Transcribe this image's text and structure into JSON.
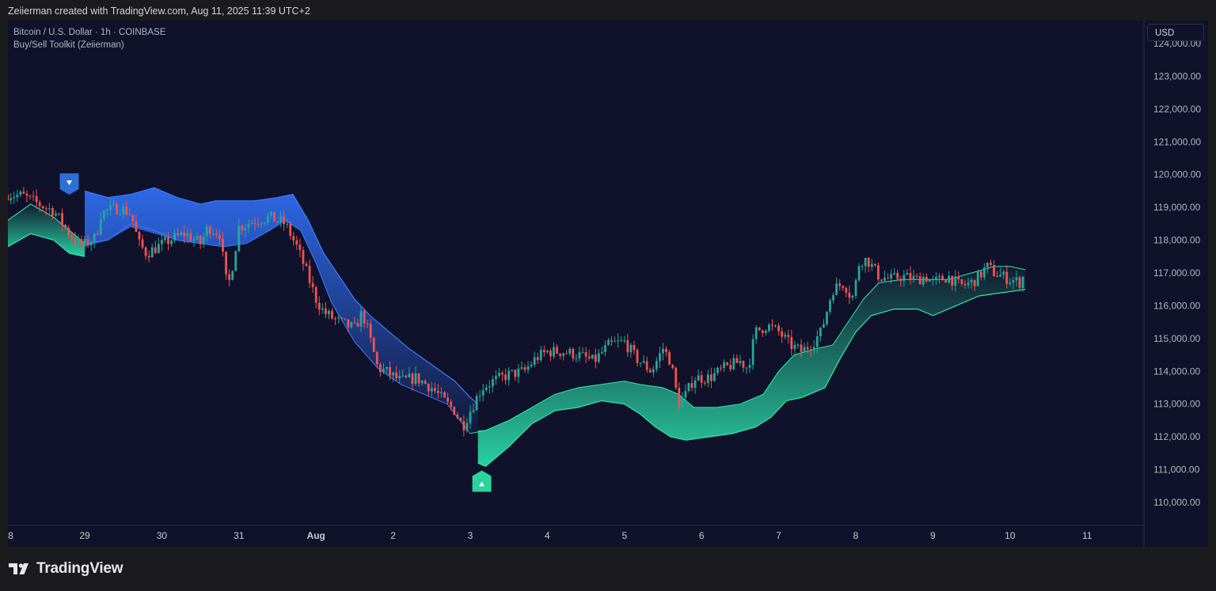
{
  "header": {
    "attribution": "Zeiierman created with TradingView.com, Aug 11, 2025 11:39 UTC+2"
  },
  "legend": {
    "symbol_line": "Bitcoin / U.S. Dollar · 1h · COINBASE",
    "indicator_line": "Buy/Sell Toolkit (Zeiierman)"
  },
  "price_axis": {
    "currency": "USD",
    "tick_labels": [
      "124,000.00",
      "123,000.00",
      "122,000.00",
      "121,000.00",
      "120,000.00",
      "119,000.00",
      "118,000.00",
      "117,000.00",
      "116,000.00",
      "115,000.00",
      "114,000.00",
      "113,000.00",
      "112,000.00",
      "111,000.00",
      "110,000.00"
    ]
  },
  "time_axis": {
    "tick_labels": [
      "8",
      "29",
      "30",
      "31",
      "Aug",
      "2",
      "3",
      "4",
      "5",
      "6",
      "7",
      "8",
      "9",
      "10",
      "11"
    ]
  },
  "footer": {
    "brand": "TradingView",
    "logo_icon": "tradingview-logo-icon"
  },
  "colors": {
    "background": "#10112a",
    "up_candle": "#26a69a",
    "down_candle": "#ef5350",
    "bearish_band": "#2962ff",
    "bullish_band": "#1de9b6",
    "sell_signal": "#2d6fd6",
    "buy_signal": "#29d39a"
  },
  "chart_data": {
    "type": "candlestick",
    "symbol": "Bitcoin / U.S. Dollar",
    "timeframe": "1h",
    "exchange": "COINBASE",
    "indicator": "Buy/Sell Toolkit (Zeiierman)",
    "y_axis": {
      "currency": "USD",
      "ylim": [
        109300,
        124700
      ],
      "ticks": [
        110000,
        111000,
        112000,
        113000,
        114000,
        115000,
        116000,
        117000,
        118000,
        119000,
        120000,
        121000,
        122000,
        123000,
        124000
      ]
    },
    "x_axis": {
      "ticks": [
        "8",
        "29",
        "30",
        "31",
        "Aug",
        "2",
        "3",
        "4",
        "5",
        "6",
        "7",
        "8",
        "9",
        "10",
        "11"
      ],
      "tick_positions_days": [
        -0.96,
        0,
        1,
        2,
        3,
        4,
        5,
        6,
        7,
        8,
        9,
        10,
        11,
        12,
        13
      ]
    },
    "close_path": [
      [
        -1.0,
        119400
      ],
      [
        -0.8,
        119350
      ],
      [
        -0.6,
        119100
      ],
      [
        -0.4,
        118900
      ],
      [
        -0.2,
        118200
      ],
      [
        -0.05,
        117800
      ],
      [
        0.15,
        118100
      ],
      [
        0.2,
        118800
      ],
      [
        0.3,
        118900
      ],
      [
        0.45,
        119000
      ],
      [
        0.6,
        118800
      ],
      [
        0.7,
        117900
      ],
      [
        0.8,
        117600
      ],
      [
        0.95,
        117800
      ],
      [
        1.1,
        118000
      ],
      [
        1.3,
        118200
      ],
      [
        1.5,
        117900
      ],
      [
        1.6,
        118400
      ],
      [
        1.75,
        118200
      ],
      [
        1.85,
        116500
      ],
      [
        1.9,
        117000
      ],
      [
        2.0,
        118400
      ],
      [
        2.2,
        118600
      ],
      [
        2.4,
        118700
      ],
      [
        2.6,
        118500
      ],
      [
        2.75,
        117800
      ],
      [
        2.85,
        117200
      ],
      [
        3.0,
        116200
      ],
      [
        3.1,
        115800
      ],
      [
        3.3,
        115500
      ],
      [
        3.5,
        115300
      ],
      [
        3.6,
        115800
      ],
      [
        3.7,
        115000
      ],
      [
        3.8,
        114100
      ],
      [
        3.9,
        114000
      ],
      [
        4.1,
        113700
      ],
      [
        4.3,
        113800
      ],
      [
        4.5,
        113500
      ],
      [
        4.7,
        113000
      ],
      [
        4.8,
        112800
      ],
      [
        4.9,
        112300
      ],
      [
        5.0,
        112800
      ],
      [
        5.15,
        113500
      ],
      [
        5.3,
        113700
      ],
      [
        5.5,
        113900
      ],
      [
        5.7,
        114000
      ],
      [
        5.85,
        114400
      ],
      [
        6.0,
        114600
      ],
      [
        6.2,
        114600
      ],
      [
        6.4,
        114500
      ],
      [
        6.6,
        114300
      ],
      [
        6.8,
        114800
      ],
      [
        7.0,
        114900
      ],
      [
        7.15,
        114400
      ],
      [
        7.35,
        114000
      ],
      [
        7.5,
        114700
      ],
      [
        7.6,
        114300
      ],
      [
        7.7,
        113000
      ],
      [
        7.8,
        113300
      ],
      [
        7.9,
        113800
      ],
      [
        8.1,
        113800
      ],
      [
        8.3,
        114100
      ],
      [
        8.5,
        114300
      ],
      [
        8.6,
        114100
      ],
      [
        8.7,
        115200
      ],
      [
        8.85,
        115400
      ],
      [
        9.0,
        115200
      ],
      [
        9.15,
        114800
      ],
      [
        9.3,
        114600
      ],
      [
        9.45,
        114900
      ],
      [
        9.55,
        115200
      ],
      [
        9.7,
        116500
      ],
      [
        9.85,
        116700
      ],
      [
        9.95,
        116200
      ],
      [
        10.0,
        116700
      ],
      [
        10.05,
        117400
      ],
      [
        10.15,
        117400
      ],
      [
        10.3,
        116900
      ],
      [
        10.45,
        116800
      ],
      [
        10.6,
        116900
      ],
      [
        10.8,
        116800
      ],
      [
        10.9,
        116900
      ],
      [
        11.0,
        116700
      ],
      [
        11.2,
        116900
      ],
      [
        11.35,
        116600
      ],
      [
        11.5,
        116700
      ],
      [
        11.6,
        116900
      ],
      [
        11.7,
        117200
      ],
      [
        11.8,
        117000
      ],
      [
        12.0,
        116800
      ],
      [
        12.15,
        116700
      ],
      [
        12.2,
        117200
      ]
    ],
    "basis_line": [
      [
        -1.0,
        118600
      ],
      [
        -0.7,
        119100
      ],
      [
        -0.4,
        118700
      ],
      [
        -0.2,
        118300
      ],
      [
        0.0,
        117900
      ],
      [
        0.3,
        118000
      ],
      [
        0.6,
        118500
      ],
      [
        0.9,
        118300
      ],
      [
        1.2,
        118000
      ],
      [
        1.5,
        117900
      ],
      [
        1.8,
        117800
      ],
      [
        2.1,
        117900
      ],
      [
        2.4,
        118300
      ],
      [
        2.6,
        118600
      ],
      [
        2.8,
        118300
      ],
      [
        3.0,
        117300
      ],
      [
        3.2,
        116100
      ],
      [
        3.5,
        114900
      ],
      [
        3.8,
        114100
      ],
      [
        4.1,
        113600
      ],
      [
        4.4,
        113300
      ],
      [
        4.7,
        113000
      ],
      [
        5.0,
        112100
      ],
      [
        5.2,
        112200
      ],
      [
        5.5,
        112500
      ],
      [
        5.8,
        112900
      ],
      [
        6.1,
        113300
      ],
      [
        6.4,
        113500
      ],
      [
        6.7,
        113600
      ],
      [
        7.0,
        113700
      ],
      [
        7.2,
        113600
      ],
      [
        7.5,
        113500
      ],
      [
        7.7,
        113300
      ],
      [
        7.9,
        112900
      ],
      [
        8.2,
        112900
      ],
      [
        8.5,
        113000
      ],
      [
        8.8,
        113300
      ],
      [
        9.0,
        114000
      ],
      [
        9.2,
        114500
      ],
      [
        9.5,
        114700
      ],
      [
        9.7,
        114800
      ],
      [
        9.9,
        115500
      ],
      [
        10.1,
        116200
      ],
      [
        10.3,
        116700
      ],
      [
        10.6,
        116800
      ],
      [
        10.9,
        116800
      ],
      [
        11.2,
        116800
      ],
      [
        11.5,
        117000
      ],
      [
        11.8,
        117200
      ],
      [
        12.0,
        117200
      ],
      [
        12.2,
        117100
      ]
    ],
    "bearish_band": {
      "upper": [
        [
          0.0,
          119500
        ],
        [
          0.3,
          119300
        ],
        [
          0.6,
          119400
        ],
        [
          0.9,
          119600
        ],
        [
          1.2,
          119300
        ],
        [
          1.5,
          119100
        ],
        [
          1.7,
          119200
        ],
        [
          1.9,
          119200
        ],
        [
          2.2,
          119200
        ],
        [
          2.5,
          119300
        ],
        [
          2.7,
          119400
        ],
        [
          2.9,
          118600
        ],
        [
          3.1,
          117600
        ],
        [
          3.3,
          116900
        ],
        [
          3.5,
          116200
        ],
        [
          3.7,
          115700
        ],
        [
          3.9,
          115300
        ],
        [
          4.2,
          114700
        ],
        [
          4.5,
          114200
        ],
        [
          4.8,
          113700
        ],
        [
          5.0,
          113200
        ],
        [
          5.1,
          113000
        ]
      ],
      "lower": [
        [
          0.0,
          117800
        ],
        [
          0.3,
          118000
        ],
        [
          0.6,
          118400
        ],
        [
          0.9,
          118200
        ],
        [
          1.2,
          118000
        ],
        [
          1.5,
          117900
        ],
        [
          1.8,
          117800
        ],
        [
          2.1,
          117900
        ],
        [
          2.4,
          118300
        ],
        [
          2.6,
          118600
        ],
        [
          2.8,
          118300
        ],
        [
          3.0,
          117300
        ],
        [
          3.2,
          116100
        ],
        [
          3.5,
          114900
        ],
        [
          3.8,
          114100
        ],
        [
          4.1,
          113600
        ],
        [
          4.4,
          113300
        ],
        [
          4.7,
          113000
        ],
        [
          5.0,
          112100
        ],
        [
          5.1,
          112200
        ]
      ]
    },
    "bullish_band_segments": [
      {
        "upper": [
          [
            -1.0,
            118600
          ],
          [
            -0.7,
            119100
          ],
          [
            -0.4,
            118700
          ],
          [
            -0.2,
            118300
          ],
          [
            0.0,
            117900
          ]
        ],
        "lower": [
          [
            -1.0,
            117800
          ],
          [
            -0.7,
            118200
          ],
          [
            -0.4,
            118000
          ],
          [
            -0.2,
            117600
          ],
          [
            0.0,
            117500
          ]
        ]
      },
      {
        "upper": [
          [
            5.1,
            112200
          ],
          [
            5.2,
            112200
          ],
          [
            5.5,
            112500
          ],
          [
            5.8,
            112900
          ],
          [
            6.1,
            113300
          ],
          [
            6.4,
            113500
          ],
          [
            6.7,
            113600
          ],
          [
            7.0,
            113700
          ],
          [
            7.2,
            113600
          ],
          [
            7.5,
            113500
          ],
          [
            7.7,
            113300
          ],
          [
            7.9,
            112900
          ],
          [
            8.2,
            112900
          ],
          [
            8.5,
            113000
          ],
          [
            8.8,
            113300
          ],
          [
            9.0,
            114000
          ],
          [
            9.2,
            114500
          ],
          [
            9.5,
            114700
          ],
          [
            9.7,
            114800
          ],
          [
            9.9,
            115500
          ],
          [
            10.1,
            116200
          ],
          [
            10.3,
            116700
          ],
          [
            10.6,
            116800
          ],
          [
            10.9,
            116800
          ],
          [
            11.2,
            116800
          ],
          [
            11.5,
            117000
          ],
          [
            11.8,
            117200
          ],
          [
            12.0,
            117200
          ],
          [
            12.2,
            117100
          ]
        ],
        "lower": [
          [
            5.1,
            111200
          ],
          [
            5.2,
            111100
          ],
          [
            5.5,
            111700
          ],
          [
            5.8,
            112400
          ],
          [
            6.1,
            112800
          ],
          [
            6.4,
            112900
          ],
          [
            6.7,
            113100
          ],
          [
            7.0,
            113000
          ],
          [
            7.2,
            112700
          ],
          [
            7.4,
            112300
          ],
          [
            7.6,
            112000
          ],
          [
            7.8,
            111900
          ],
          [
            8.1,
            112000
          ],
          [
            8.4,
            112100
          ],
          [
            8.7,
            112300
          ],
          [
            8.9,
            112600
          ],
          [
            9.1,
            113100
          ],
          [
            9.3,
            113200
          ],
          [
            9.6,
            113500
          ],
          [
            9.8,
            114400
          ],
          [
            10.0,
            115200
          ],
          [
            10.2,
            115700
          ],
          [
            10.5,
            115900
          ],
          [
            10.8,
            115900
          ],
          [
            11.0,
            115700
          ],
          [
            11.3,
            116000
          ],
          [
            11.6,
            116300
          ],
          [
            11.9,
            116400
          ],
          [
            12.2,
            116500
          ]
        ]
      }
    ],
    "signals": [
      {
        "type": "sell",
        "day": -0.2,
        "price": 119700,
        "icon": "triangle-down-icon"
      },
      {
        "type": "buy",
        "day": 5.15,
        "price": 111000,
        "icon": "triangle-up-icon"
      }
    ]
  }
}
